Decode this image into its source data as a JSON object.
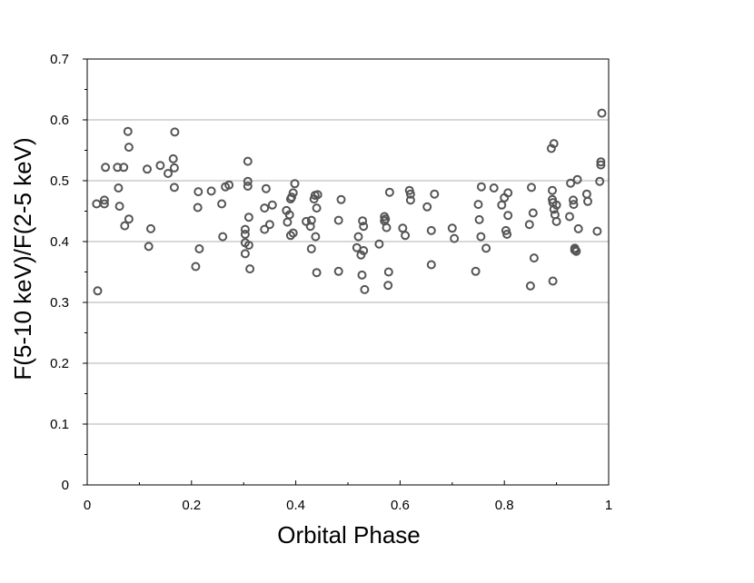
{
  "chart_data": {
    "type": "scatter",
    "title": "",
    "xlabel": "Orbital Phase",
    "ylabel": "F(5-10 keV)/F(2-5 keV)",
    "xlim": [
      0,
      1
    ],
    "ylim": [
      0,
      0.7
    ],
    "xticks": [
      0,
      0.2,
      0.4,
      0.6,
      0.8,
      1
    ],
    "xtick_labels": [
      "0",
      "0.2",
      "0.4",
      "0.6",
      "0.8",
      "1"
    ],
    "yticks": [
      0,
      0.1,
      0.2,
      0.3,
      0.4,
      0.5,
      0.6,
      0.7
    ],
    "ytick_labels": [
      "0",
      "0.1",
      "0.2",
      "0.3",
      "0.4",
      "0.5",
      "0.6",
      "0.7"
    ],
    "grid": "horizontal",
    "legend": "none",
    "marker": "open-circle",
    "marker_color": "#555555",
    "grid_color": "#b0b0b0",
    "series": [
      {
        "points": [
          [
            0.018,
            0.462
          ],
          [
            0.02,
            0.319
          ],
          [
            0.033,
            0.468
          ],
          [
            0.033,
            0.462
          ],
          [
            0.035,
            0.522
          ],
          [
            0.058,
            0.522
          ],
          [
            0.06,
            0.488
          ],
          [
            0.062,
            0.458
          ],
          [
            0.07,
            0.522
          ],
          [
            0.072,
            0.426
          ],
          [
            0.078,
            0.581
          ],
          [
            0.08,
            0.555
          ],
          [
            0.08,
            0.437
          ],
          [
            0.115,
            0.519
          ],
          [
            0.118,
            0.392
          ],
          [
            0.122,
            0.421
          ],
          [
            0.14,
            0.525
          ],
          [
            0.155,
            0.512
          ],
          [
            0.165,
            0.536
          ],
          [
            0.167,
            0.521
          ],
          [
            0.167,
            0.489
          ],
          [
            0.168,
            0.58
          ],
          [
            0.208,
            0.359
          ],
          [
            0.212,
            0.456
          ],
          [
            0.213,
            0.482
          ],
          [
            0.215,
            0.388
          ],
          [
            0.238,
            0.483
          ],
          [
            0.258,
            0.462
          ],
          [
            0.26,
            0.408
          ],
          [
            0.265,
            0.49
          ],
          [
            0.272,
            0.493
          ],
          [
            0.303,
            0.42
          ],
          [
            0.303,
            0.412
          ],
          [
            0.303,
            0.398
          ],
          [
            0.303,
            0.38
          ],
          [
            0.308,
            0.532
          ],
          [
            0.308,
            0.499
          ],
          [
            0.308,
            0.491
          ],
          [
            0.31,
            0.44
          ],
          [
            0.31,
            0.394
          ],
          [
            0.312,
            0.355
          ],
          [
            0.34,
            0.455
          ],
          [
            0.34,
            0.42
          ],
          [
            0.343,
            0.487
          ],
          [
            0.35,
            0.428
          ],
          [
            0.355,
            0.46
          ],
          [
            0.382,
            0.451
          ],
          [
            0.384,
            0.432
          ],
          [
            0.388,
            0.444
          ],
          [
            0.39,
            0.41
          ],
          [
            0.39,
            0.47
          ],
          [
            0.392,
            0.473
          ],
          [
            0.395,
            0.414
          ],
          [
            0.395,
            0.48
          ],
          [
            0.398,
            0.495
          ],
          [
            0.42,
            0.433
          ],
          [
            0.428,
            0.425
          ],
          [
            0.43,
            0.435
          ],
          [
            0.43,
            0.388
          ],
          [
            0.435,
            0.47
          ],
          [
            0.437,
            0.476
          ],
          [
            0.438,
            0.408
          ],
          [
            0.44,
            0.349
          ],
          [
            0.44,
            0.455
          ],
          [
            0.442,
            0.477
          ],
          [
            0.482,
            0.435
          ],
          [
            0.482,
            0.351
          ],
          [
            0.487,
            0.469
          ],
          [
            0.517,
            0.39
          ],
          [
            0.52,
            0.408
          ],
          [
            0.525,
            0.378
          ],
          [
            0.527,
            0.345
          ],
          [
            0.528,
            0.434
          ],
          [
            0.53,
            0.425
          ],
          [
            0.53,
            0.385
          ],
          [
            0.532,
            0.321
          ],
          [
            0.56,
            0.396
          ],
          [
            0.57,
            0.441
          ],
          [
            0.57,
            0.434
          ],
          [
            0.572,
            0.437
          ],
          [
            0.574,
            0.423
          ],
          [
            0.577,
            0.328
          ],
          [
            0.578,
            0.35
          ],
          [
            0.58,
            0.481
          ],
          [
            0.605,
            0.422
          ],
          [
            0.61,
            0.41
          ],
          [
            0.618,
            0.484
          ],
          [
            0.62,
            0.468
          ],
          [
            0.62,
            0.478
          ],
          [
            0.652,
            0.457
          ],
          [
            0.66,
            0.362
          ],
          [
            0.66,
            0.418
          ],
          [
            0.666,
            0.478
          ],
          [
            0.7,
            0.422
          ],
          [
            0.704,
            0.405
          ],
          [
            0.745,
            0.351
          ],
          [
            0.75,
            0.461
          ],
          [
            0.752,
            0.436
          ],
          [
            0.755,
            0.408
          ],
          [
            0.756,
            0.49
          ],
          [
            0.765,
            0.389
          ],
          [
            0.78,
            0.488
          ],
          [
            0.795,
            0.46
          ],
          [
            0.8,
            0.472
          ],
          [
            0.803,
            0.418
          ],
          [
            0.805,
            0.412
          ],
          [
            0.807,
            0.48
          ],
          [
            0.807,
            0.443
          ],
          [
            0.848,
            0.428
          ],
          [
            0.85,
            0.327
          ],
          [
            0.852,
            0.489
          ],
          [
            0.855,
            0.447
          ],
          [
            0.857,
            0.373
          ],
          [
            0.89,
            0.553
          ],
          [
            0.892,
            0.484
          ],
          [
            0.892,
            0.469
          ],
          [
            0.893,
            0.464
          ],
          [
            0.893,
            0.335
          ],
          [
            0.895,
            0.561
          ],
          [
            0.895,
            0.453
          ],
          [
            0.897,
            0.444
          ],
          [
            0.9,
            0.46
          ],
          [
            0.9,
            0.433
          ],
          [
            0.925,
            0.441
          ],
          [
            0.927,
            0.496
          ],
          [
            0.932,
            0.468
          ],
          [
            0.933,
            0.461
          ],
          [
            0.935,
            0.386
          ],
          [
            0.935,
            0.389
          ],
          [
            0.938,
            0.384
          ],
          [
            0.94,
            0.502
          ],
          [
            0.942,
            0.421
          ],
          [
            0.958,
            0.478
          ],
          [
            0.96,
            0.466
          ],
          [
            0.978,
            0.417
          ],
          [
            0.983,
            0.499
          ],
          [
            0.985,
            0.526
          ],
          [
            0.985,
            0.531
          ],
          [
            0.987,
            0.611
          ]
        ]
      }
    ]
  }
}
